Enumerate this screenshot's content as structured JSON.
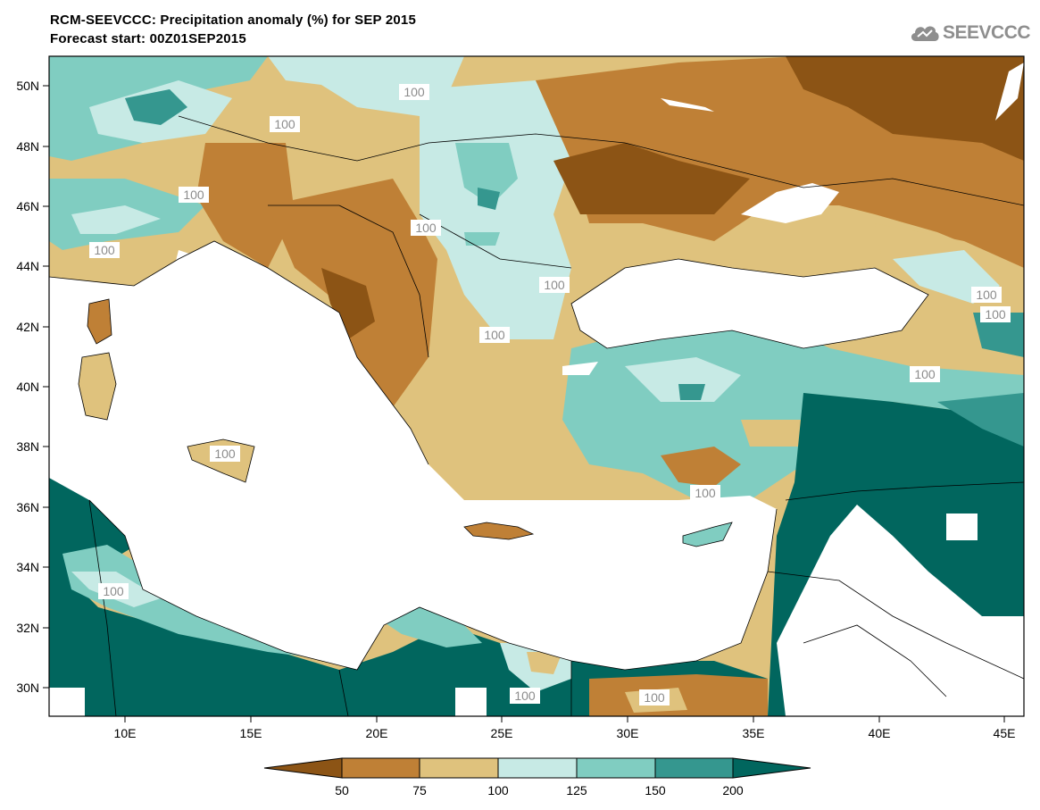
{
  "header": {
    "title": "RCM-SEEVCCC: Precipitation anomaly (%) for SEP 2015",
    "subtitle": "Forecast start: 00Z01SEP2015"
  },
  "logo": {
    "text": "SEEVCCC",
    "icon": "cloud-icon"
  },
  "axes": {
    "lat_labels": [
      "50N",
      "48N",
      "46N",
      "44N",
      "42N",
      "40N",
      "38N",
      "36N",
      "34N",
      "32N",
      "30N"
    ],
    "lon_labels": [
      "10E",
      "15E",
      "20E",
      "25E",
      "30E",
      "35E",
      "40E",
      "45E"
    ]
  },
  "contour_label": "100",
  "colorbar": {
    "ticks": [
      "50",
      "75",
      "100",
      "125",
      "150",
      "200"
    ],
    "colors": [
      "#8c5415",
      "#bf8036",
      "#dfc27d",
      "#c7eae5",
      "#80cdc1",
      "#35978f",
      "#01665e"
    ]
  }
}
